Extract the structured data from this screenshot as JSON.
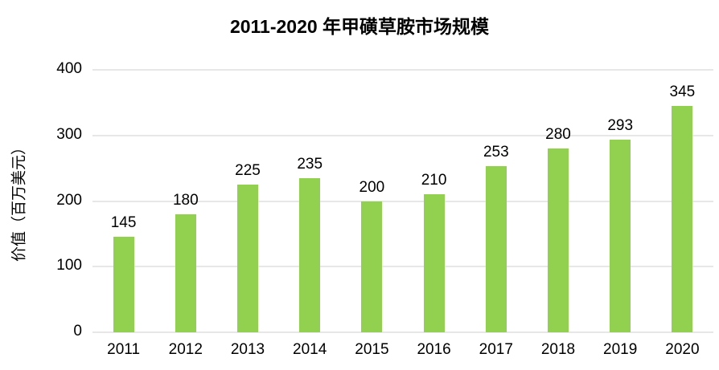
{
  "chart_data": {
    "type": "bar",
    "title": "2011-2020 年甲磺草胺市场规模",
    "categories": [
      "2011",
      "2012",
      "2013",
      "2014",
      "2015",
      "2016",
      "2017",
      "2018",
      "2019",
      "2020"
    ],
    "values": [
      145,
      180,
      225,
      235,
      200,
      210,
      253,
      280,
      293,
      345
    ],
    "xlabel": "",
    "ylabel": "价值（百万美元）",
    "ylim": [
      0,
      400
    ],
    "yticks": [
      0,
      100,
      200,
      300,
      400
    ],
    "grid": "horizontal",
    "legend": "none",
    "bar_color": "#92D050",
    "gridline_color": "#E7E7E7",
    "text_color": "#000000",
    "background": "#FFFFFF"
  }
}
